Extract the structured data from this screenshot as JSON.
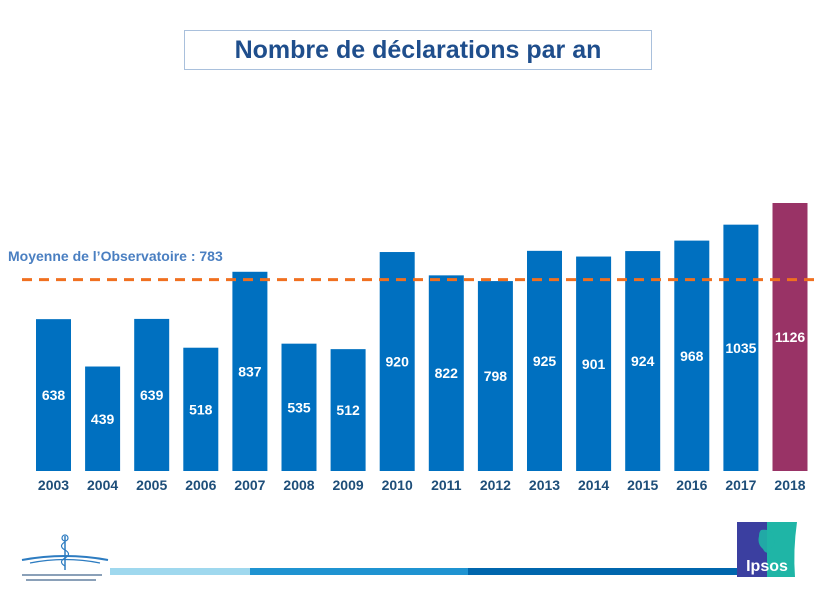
{
  "title": "Nombre de déclarations par an",
  "average_label": "Moyenne de l’Observatoire : 783",
  "colors": {
    "bar": "#0070c0",
    "bar_highlight": "#993366",
    "average_line": "#f07020",
    "title_text": "#1f4e8c",
    "tick_text": "#1e4e79",
    "footer_band": [
      "#9fd8ee",
      "#1f93d1",
      "#0066ad"
    ]
  },
  "logos": {
    "left": "Ordre National des Médecins – Conseil National de l'Ordre",
    "left_icon": "caduceus-icon",
    "right": "Ipsos",
    "right_icon": "ipsos-logo-icon"
  },
  "chart_data": {
    "type": "bar",
    "title": "Nombre de déclarations par an",
    "xlabel": "",
    "ylabel": "",
    "categories": [
      "2003",
      "2004",
      "2005",
      "2006",
      "2007",
      "2008",
      "2009",
      "2010",
      "2011",
      "2012",
      "2013",
      "2014",
      "2015",
      "2016",
      "2017",
      "2018"
    ],
    "values": [
      638,
      439,
      639,
      518,
      837,
      535,
      512,
      920,
      822,
      798,
      925,
      901,
      924,
      968,
      1035,
      1126
    ],
    "highlight_category": "2018",
    "reference_line": {
      "label": "Moyenne de l’Observatoire : 783",
      "value": 783,
      "style": "dashed"
    },
    "ylim": [
      0,
      1126
    ],
    "grid": false,
    "legend": "none",
    "data_labels": true
  }
}
